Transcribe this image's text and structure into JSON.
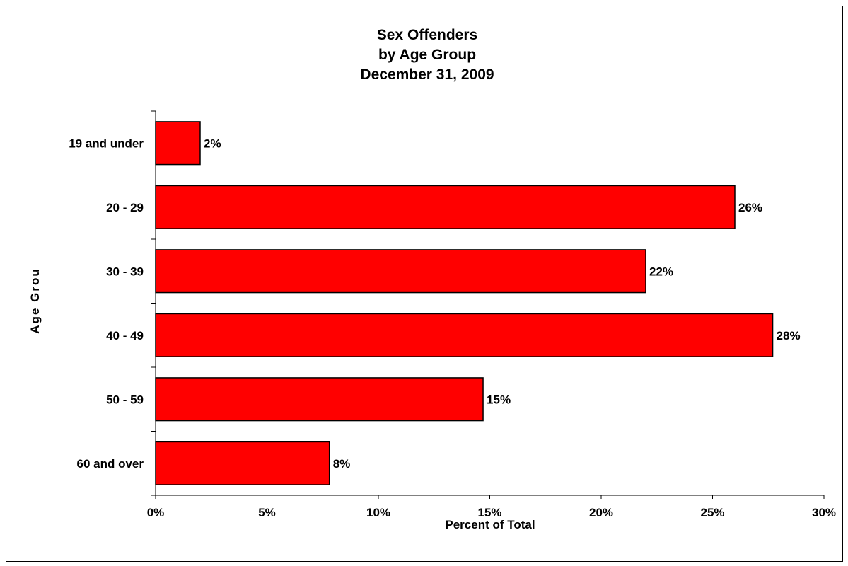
{
  "chart_data": {
    "type": "bar",
    "orientation": "horizontal",
    "title": [
      "Sex Offenders",
      "by Age Group",
      "December 31, 2009"
    ],
    "categories": [
      "19 and under",
      "20 - 29",
      "30 - 39",
      "40 - 49",
      "50 - 59",
      "60 and over"
    ],
    "values": [
      2.0,
      26.0,
      22.0,
      27.7,
      14.7,
      7.8
    ],
    "data_labels": [
      "2%",
      "26%",
      "22%",
      "28%",
      "15%",
      "8%"
    ],
    "xlabel": "Percent of Total",
    "ylabel": "Age Grou",
    "xlim": [
      0,
      30
    ],
    "xticks": [
      0,
      5,
      10,
      15,
      20,
      25,
      30
    ],
    "xtick_labels": [
      "0%",
      "5%",
      "10%",
      "15%",
      "20%",
      "25%",
      "30%"
    ],
    "grid": false,
    "legend": "none",
    "bar_color": "#FF0000",
    "bar_edge_color": "#000000"
  }
}
